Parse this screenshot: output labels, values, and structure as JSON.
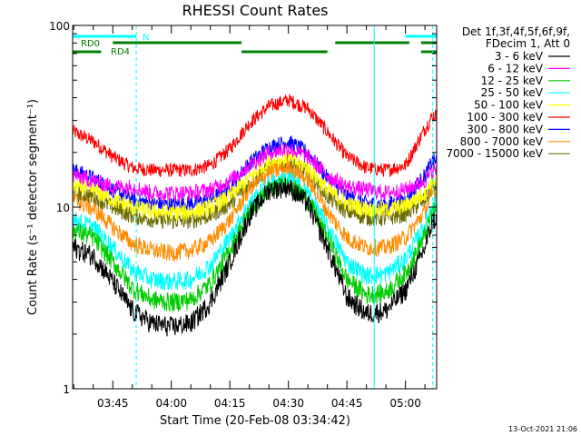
{
  "chart_data": {
    "type": "line",
    "title": "RHESSI Count Rates",
    "xlabel": "Start Time (20-Feb-08 03:34:42)",
    "ylabel": "Count Rate (s⁻¹ detector segment⁻¹)",
    "y_scale": "log",
    "ylim": [
      1,
      100
    ],
    "xlim": [
      "03:34:42",
      "05:08:00"
    ],
    "grid": false,
    "legend_position": "right",
    "x_ticks": [
      "03:45",
      "04:00",
      "04:15",
      "04:30",
      "04:45",
      "05:00"
    ],
    "y_ticks": [
      "1",
      "10",
      "100"
    ],
    "legend_header": [
      "Det 1f,3f,4f,5f,6f,9f,",
      "FDecim 1, Att 0"
    ],
    "footer_timestamp": "13-Oct-2021 21:06",
    "series": [
      {
        "name": "3 - 6 keV",
        "color": "#000000",
        "x": [
          "03:35",
          "03:40",
          "03:45",
          "03:50",
          "03:55",
          "04:00",
          "04:05",
          "04:10",
          "04:15",
          "04:20",
          "04:25",
          "04:30",
          "04:35",
          "04:40",
          "04:45",
          "04:50",
          "04:55",
          "05:00",
          "05:05",
          "05:07"
        ],
        "values": [
          6.0,
          5.4,
          3.9,
          2.7,
          2.3,
          2.2,
          2.3,
          3.0,
          5.0,
          9.0,
          12.5,
          13.0,
          10.5,
          6.0,
          3.2,
          2.6,
          2.7,
          3.5,
          6.0,
          8.5
        ]
      },
      {
        "name": "6 - 12 keV",
        "color": "#ff00ff",
        "x": [
          "03:35",
          "03:40",
          "03:45",
          "03:50",
          "03:55",
          "04:00",
          "04:05",
          "04:10",
          "04:15",
          "04:20",
          "04:25",
          "04:30",
          "04:35",
          "04:40",
          "04:45",
          "04:50",
          "04:55",
          "05:00",
          "05:05",
          "05:07"
        ],
        "values": [
          15.0,
          14.0,
          13.0,
          13.0,
          12.0,
          12.0,
          12.0,
          12.5,
          14.0,
          17.0,
          20.0,
          21.0,
          19.0,
          15.0,
          13.0,
          12.5,
          12.0,
          12.5,
          14.0,
          16.0
        ]
      },
      {
        "name": "12 - 25 keV",
        "color": "#00cc00",
        "x": [
          "03:35",
          "03:40",
          "03:45",
          "03:50",
          "03:55",
          "04:00",
          "04:05",
          "04:10",
          "04:15",
          "04:20",
          "04:25",
          "04:30",
          "04:35",
          "04:40",
          "04:45",
          "04:50",
          "04:55",
          "05:00",
          "05:05",
          "05:07"
        ],
        "values": [
          7.5,
          6.8,
          5.0,
          3.6,
          3.1,
          3.0,
          3.1,
          3.8,
          5.8,
          9.5,
          12.5,
          13.5,
          11.0,
          6.8,
          4.0,
          3.3,
          3.4,
          4.3,
          7.0,
          9.5
        ]
      },
      {
        "name": "25 - 50 keV",
        "color": "#00ffff",
        "x": [
          "03:35",
          "03:40",
          "03:45",
          "03:50",
          "03:55",
          "04:00",
          "04:05",
          "04:10",
          "04:15",
          "04:20",
          "04:25",
          "04:30",
          "04:35",
          "04:40",
          "04:45",
          "04:50",
          "04:55",
          "05:00",
          "05:05",
          "05:07"
        ],
        "values": [
          8.5,
          7.8,
          6.0,
          4.5,
          4.0,
          3.9,
          4.0,
          4.8,
          6.8,
          10.5,
          13.5,
          14.5,
          12.0,
          7.8,
          5.0,
          4.2,
          4.3,
          5.2,
          8.0,
          10.5
        ]
      },
      {
        "name": "50 - 100 keV",
        "color": "#ffff00",
        "x": [
          "03:35",
          "03:40",
          "03:45",
          "03:50",
          "03:55",
          "04:00",
          "04:05",
          "04:10",
          "04:15",
          "04:20",
          "04:25",
          "04:30",
          "04:35",
          "04:40",
          "04:45",
          "04:50",
          "04:55",
          "05:00",
          "05:05",
          "05:07"
        ],
        "values": [
          13.0,
          12.5,
          11.0,
          10.0,
          9.5,
          9.3,
          9.4,
          10.0,
          11.5,
          14.5,
          17.5,
          18.5,
          16.5,
          12.5,
          10.5,
          9.8,
          9.7,
          10.2,
          12.0,
          14.0
        ]
      },
      {
        "name": "100 - 300 keV",
        "color": "#ff0000",
        "x": [
          "03:35",
          "03:40",
          "03:45",
          "03:50",
          "03:55",
          "04:00",
          "04:05",
          "04:10",
          "04:15",
          "04:20",
          "04:25",
          "04:30",
          "04:35",
          "04:40",
          "04:45",
          "04:50",
          "04:55",
          "05:00",
          "05:05",
          "05:07"
        ],
        "values": [
          26.0,
          23.0,
          19.0,
          16.5,
          16.0,
          16.0,
          16.0,
          17.0,
          21.0,
          29.0,
          36.0,
          39.0,
          35.0,
          26.0,
          19.0,
          16.5,
          16.0,
          17.0,
          27.0,
          32.0
        ]
      },
      {
        "name": "300 - 800 keV",
        "color": "#0000ff",
        "x": [
          "03:35",
          "03:40",
          "03:45",
          "03:50",
          "03:55",
          "04:00",
          "04:05",
          "04:10",
          "04:15",
          "04:20",
          "04:25",
          "04:30",
          "04:35",
          "04:40",
          "04:45",
          "04:50",
          "04:55",
          "05:00",
          "05:05",
          "05:07"
        ],
        "values": [
          16.0,
          14.5,
          12.5,
          11.0,
          10.5,
          10.3,
          10.5,
          11.0,
          13.0,
          17.5,
          21.5,
          23.0,
          20.0,
          14.5,
          11.5,
          10.5,
          10.3,
          11.0,
          15.0,
          18.0
        ]
      },
      {
        "name": "800 - 7000 keV",
        "color": "#ff8c00",
        "x": [
          "03:35",
          "03:40",
          "03:45",
          "03:50",
          "03:55",
          "04:00",
          "04:05",
          "04:10",
          "04:15",
          "04:20",
          "04:25",
          "04:30",
          "04:35",
          "04:40",
          "04:45",
          "04:50",
          "04:55",
          "05:00",
          "05:05",
          "05:07"
        ],
        "values": [
          11.0,
          9.8,
          7.8,
          6.3,
          5.8,
          5.6,
          5.8,
          6.5,
          8.5,
          12.5,
          15.5,
          16.5,
          14.0,
          9.5,
          6.8,
          6.0,
          6.0,
          6.8,
          9.5,
          12.0
        ]
      },
      {
        "name": "7000 - 15000 keV",
        "color": "#6b6b00",
        "x": [
          "03:35",
          "03:40",
          "03:45",
          "03:50",
          "03:55",
          "04:00",
          "04:05",
          "04:10",
          "04:15",
          "04:20",
          "04:25",
          "04:30",
          "04:35",
          "04:40",
          "04:45",
          "04:50",
          "04:55",
          "05:00",
          "05:05",
          "05:07"
        ],
        "values": [
          12.0,
          11.5,
          10.0,
          9.0,
          8.6,
          8.4,
          8.5,
          9.0,
          10.5,
          13.5,
          16.5,
          17.5,
          15.5,
          11.5,
          9.5,
          8.8,
          8.7,
          9.2,
          11.0,
          13.0
        ]
      }
    ],
    "flag_bars": [
      {
        "label": "N",
        "color": "#00ffff",
        "segments": [
          [
            "03:34:42",
            "03:51:00"
          ],
          [
            "05:00:00",
            "05:08:00"
          ]
        ]
      },
      {
        "label": "RD0",
        "color": "#008000",
        "segments": [
          [
            "03:45:00",
            "04:18:00"
          ],
          [
            "04:42:00",
            "05:01:00"
          ],
          [
            "05:04:00",
            "05:08:00"
          ]
        ]
      },
      {
        "label": "RD4",
        "color": "#008000",
        "segments": [
          [
            "03:34:42",
            "03:42:00"
          ],
          [
            "04:18:00",
            "04:40:00"
          ],
          [
            "05:04:00",
            "05:08:00"
          ]
        ]
      }
    ],
    "vertical_markers": [
      {
        "time": "03:51:00",
        "style": "dashed",
        "color": "#00ffff"
      },
      {
        "time": "04:52:00",
        "style": "solid",
        "color": "#00ffff"
      },
      {
        "time": "05:07:00",
        "style": "dashed",
        "color": "#00ffff"
      }
    ]
  }
}
